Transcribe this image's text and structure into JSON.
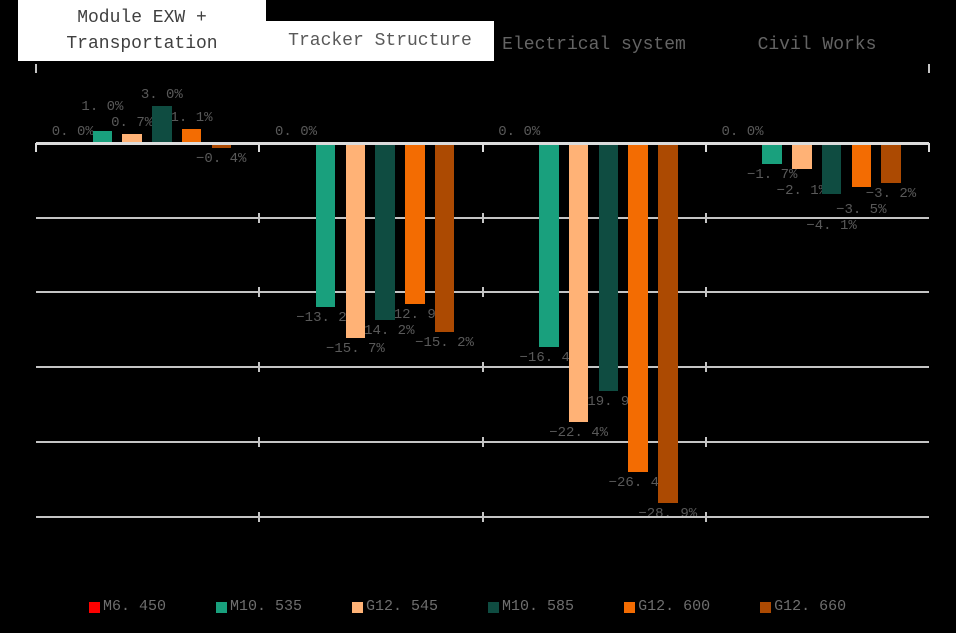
{
  "page": {
    "background": "#000000"
  },
  "headers": {
    "module": {
      "line1": "Module EXW +",
      "line2": "Transportation"
    },
    "tracker": "Tracker Structure",
    "electrical": "Electrical system",
    "civil": "Civil Works"
  },
  "chart_data": {
    "type": "bar",
    "title": "",
    "categories": [
      "Module EXW + Transportation",
      "Tracker Structure",
      "Electrical system",
      "Civil Works"
    ],
    "series": [
      {
        "name": "M6. 450",
        "color": "#FE0100",
        "values": [
          0.0,
          0.0,
          0.0,
          0.0
        ],
        "labels": [
          "0. 0%",
          "0. 0%",
          "0. 0%",
          "0. 0%"
        ]
      },
      {
        "name": "M10. 535",
        "color": "#19A07D",
        "values": [
          1.0,
          -13.2,
          -16.4,
          -1.7
        ],
        "labels": [
          "1. 0%",
          "−13. 2%",
          "−16. 4%",
          "−1. 7%"
        ]
      },
      {
        "name": "G12. 545",
        "color": "#FFB276",
        "values": [
          0.7,
          -15.7,
          -22.4,
          -2.1
        ],
        "labels": [
          "0. 7%",
          "−15. 7%",
          "−22. 4%",
          "−2. 1%"
        ]
      },
      {
        "name": "M10. 585",
        "color": "#0F4C41",
        "values": [
          3.0,
          -14.2,
          -19.9,
          -4.1
        ],
        "labels": [
          "3. 0%",
          "−14. 2%",
          "−19. 9%",
          "−4. 1%"
        ]
      },
      {
        "name": "G12. 600",
        "color": "#F36C02",
        "values": [
          1.1,
          -12.9,
          -26.4,
          -3.5
        ],
        "labels": [
          "1. 1%",
          "−12. 9%",
          "−26. 4%",
          "−3. 5%"
        ]
      },
      {
        "name": "G12. 660",
        "color": "#AC4A02",
        "values": [
          -0.4,
          -15.2,
          -28.9,
          -3.2
        ],
        "labels": [
          "−0. 4%",
          "−15. 2%",
          "−28. 9%",
          "−3. 2%"
        ]
      }
    ],
    "ylim": [
      6,
      -30
    ],
    "gridline_step_pct": 6,
    "grid": true,
    "y_axis_tick_labels": "hidden",
    "legend_position": "bottom",
    "data_label_position": "outside_end"
  },
  "styles": {
    "background": "#000000",
    "data_label_color": "#595959",
    "legend_text_color": "#6E6E6E",
    "axis_line_color": "#DCDCDC",
    "gridline_color": "#C4C4C4",
    "header_box_bg": "#FFFFFF",
    "header_box1_text": "#404040",
    "header_box2_text": "#595959",
    "header_on_black_text": "#646464"
  }
}
